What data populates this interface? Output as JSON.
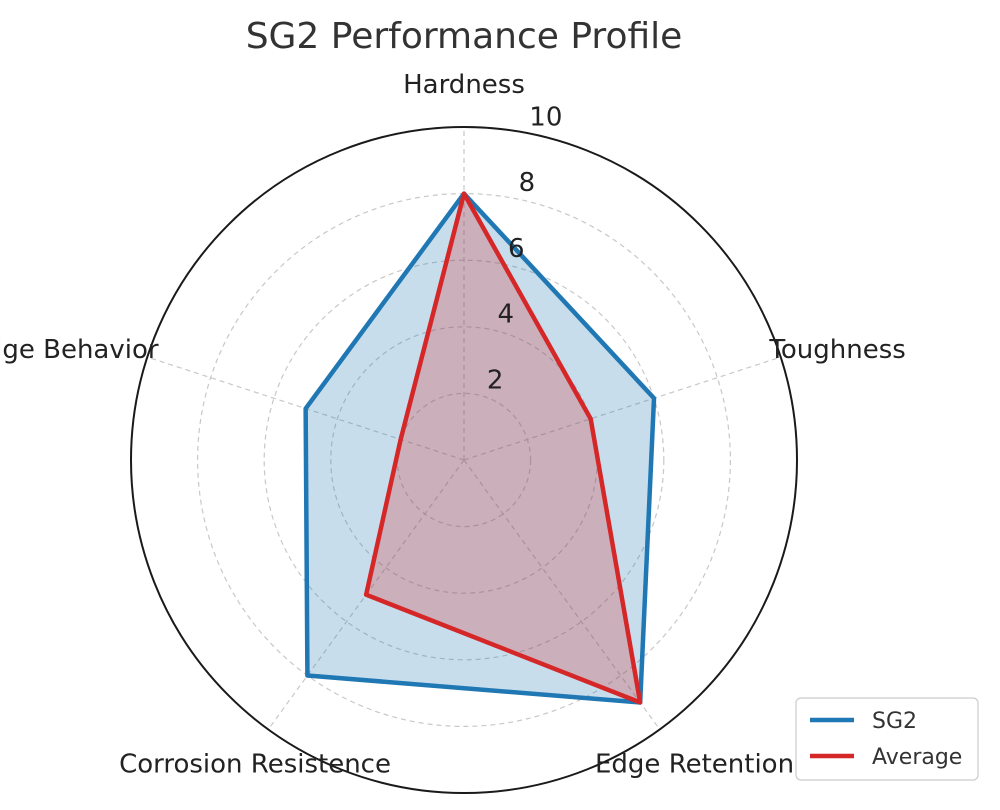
{
  "chart_data": {
    "type": "radar",
    "title": "SG2 Performance Profile",
    "categories": [
      "Hardness",
      "Toughness",
      "Edge Retention",
      "Corrosion Resistence",
      "Edge Behavior"
    ],
    "rticks": [
      2,
      4,
      6,
      8,
      10
    ],
    "rlim": [
      0,
      10
    ],
    "grid": true,
    "legend_position": "bottom-right",
    "series": [
      {
        "name": "SG2",
        "values": [
          8,
          6,
          9,
          8,
          5
        ],
        "color": "#1f77b4",
        "fill": true
      },
      {
        "name": "Average",
        "values": [
          8,
          4,
          9,
          5,
          2
        ],
        "color": "#d62728",
        "fill": true
      }
    ]
  }
}
